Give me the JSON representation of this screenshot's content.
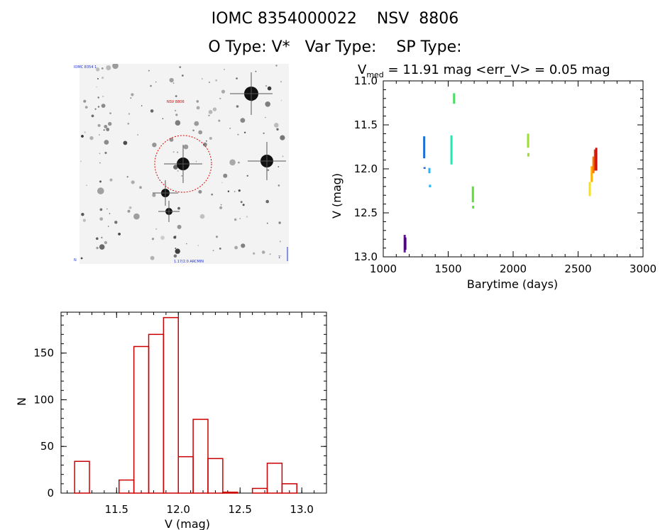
{
  "header": {
    "title_line1": "IOMC 8354000022    NSV  8806",
    "title_line2": "O Type: V*   Var Type:    SP Type:"
  },
  "image_panel": {
    "top_left_label": "IOMC 8354 1",
    "target_label": "NSV 8806",
    "bottom_label": "1.17/2.0 ARCMIN",
    "bottom_left_label": "N",
    "bottom_right_label": "1'"
  },
  "light_curve": {
    "title_prefix": "V",
    "title_subscript": "med",
    "title_rest": " = 11.91 mag <err_V> = 0.05 mag",
    "xlabel": "Barytime (days)",
    "ylabel": "V (mag)",
    "xlim": [
      1000,
      3000
    ],
    "ylim": [
      13.0,
      11.0
    ],
    "xticks": [
      1000,
      1500,
      2000,
      2500,
      3000
    ],
    "yticks": [
      "11.0",
      "11.5",
      "12.0",
      "12.5",
      "13.0"
    ],
    "clusters": [
      {
        "x": 1165,
        "y0": 12.75,
        "y1": 12.95,
        "color": "#6a0dad"
      },
      {
        "x": 1170,
        "y0": 12.78,
        "y1": 12.92,
        "color": "#4b0082"
      },
      {
        "x": 1315,
        "y0": 11.63,
        "y1": 11.88,
        "color": "#1e6fd9"
      },
      {
        "x": 1318,
        "y0": 11.98,
        "y1": 12.0,
        "color": "#1e6fd9"
      },
      {
        "x": 1355,
        "y0": 11.99,
        "y1": 12.05,
        "color": "#29b6f6"
      },
      {
        "x": 1360,
        "y0": 12.18,
        "y1": 12.21,
        "color": "#29b6f6"
      },
      {
        "x": 1525,
        "y0": 11.62,
        "y1": 11.95,
        "color": "#1de9b6"
      },
      {
        "x": 1545,
        "y0": 11.14,
        "y1": 11.26,
        "color": "#4cdd66"
      },
      {
        "x": 1690,
        "y0": 12.2,
        "y1": 12.38,
        "color": "#5fdc3a"
      },
      {
        "x": 1692,
        "y0": 12.42,
        "y1": 12.45,
        "color": "#5fdc3a"
      },
      {
        "x": 2115,
        "y0": 11.6,
        "y1": 11.76,
        "color": "#9be02a"
      },
      {
        "x": 2117,
        "y0": 11.82,
        "y1": 11.86,
        "color": "#9be02a"
      },
      {
        "x": 2590,
        "y0": 12.15,
        "y1": 12.31,
        "color": "#f4e01b"
      },
      {
        "x": 2605,
        "y0": 11.97,
        "y1": 12.15,
        "color": "#ffb000"
      },
      {
        "x": 2618,
        "y0": 11.86,
        "y1": 12.05,
        "color": "#ff7a00"
      },
      {
        "x": 2630,
        "y0": 11.78,
        "y1": 12.02,
        "color": "#e83a0c"
      },
      {
        "x": 2640,
        "y0": 11.76,
        "y1": 12.02,
        "color": "#cc1010"
      }
    ]
  },
  "histogram": {
    "xlabel": "V (mag)",
    "ylabel": "N",
    "xlim": [
      11.05,
      13.2
    ],
    "ylim": [
      0,
      190
    ],
    "xticks": [
      "11.5",
      "12.0",
      "12.5",
      "13.0"
    ],
    "yticks": [
      "0",
      "50",
      "100",
      "150"
    ],
    "bin_width": 0.12,
    "bins": [
      {
        "left": 11.16,
        "count": 34
      },
      {
        "left": 11.52,
        "count": 14
      },
      {
        "left": 11.64,
        "count": 157
      },
      {
        "left": 11.76,
        "count": 170
      },
      {
        "left": 11.88,
        "count": 188
      },
      {
        "left": 12.0,
        "count": 39
      },
      {
        "left": 12.12,
        "count": 79
      },
      {
        "left": 12.24,
        "count": 37
      },
      {
        "left": 12.36,
        "count": 1
      },
      {
        "left": 12.6,
        "count": 5
      },
      {
        "left": 12.72,
        "count": 32
      },
      {
        "left": 12.84,
        "count": 10
      }
    ],
    "bar_color": "#cc0000"
  }
}
